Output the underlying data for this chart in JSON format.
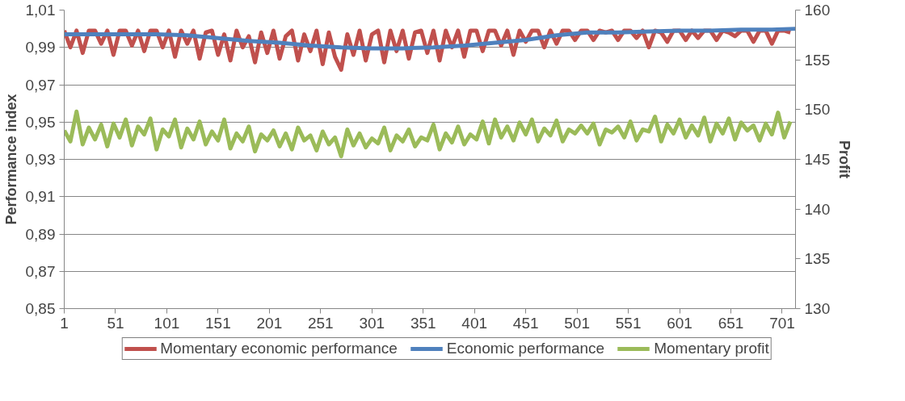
{
  "chart_data": {
    "type": "line",
    "ylabel": "Performance index",
    "y2label": "Profit",
    "xlim": [
      1,
      714
    ],
    "xticks": [
      1,
      51,
      101,
      151,
      201,
      251,
      301,
      351,
      401,
      451,
      501,
      551,
      601,
      651,
      701
    ],
    "ylim": [
      0.85,
      1.01
    ],
    "yticks": [
      {
        "value": 0.85,
        "label": "0,85"
      },
      {
        "value": 0.87,
        "label": "0,87"
      },
      {
        "value": 0.89,
        "label": "0,89"
      },
      {
        "value": 0.91,
        "label": "0,91"
      },
      {
        "value": 0.93,
        "label": "0,93"
      },
      {
        "value": 0.95,
        "label": "0,95"
      },
      {
        "value": 0.97,
        "label": "0,97"
      },
      {
        "value": 0.99,
        "label": "0,99"
      },
      {
        "value": 1.01,
        "label": "1,01"
      }
    ],
    "y2lim": [
      130,
      160
    ],
    "y2ticks": [
      130,
      135,
      140,
      145,
      150,
      155,
      160
    ],
    "grid": "y",
    "legend": "bottom",
    "line_style": "solid",
    "marker": "none",
    "series": [
      {
        "name": "Momentary economic performance",
        "color": "#c0504d",
        "x": [
          1,
          7,
          13,
          19,
          25,
          31,
          37,
          43,
          49,
          55,
          61,
          67,
          73,
          79,
          85,
          91,
          97,
          103,
          109,
          115,
          121,
          127,
          133,
          139,
          145,
          151,
          157,
          163,
          169,
          175,
          181,
          187,
          193,
          199,
          205,
          211,
          217,
          223,
          229,
          235,
          241,
          247,
          253,
          259,
          265,
          271,
          277,
          283,
          289,
          295,
          301,
          307,
          313,
          319,
          325,
          331,
          337,
          343,
          349,
          355,
          361,
          367,
          373,
          379,
          385,
          391,
          397,
          403,
          409,
          415,
          421,
          427,
          433,
          439,
          445,
          451,
          457,
          463,
          469,
          475,
          481,
          487,
          493,
          499,
          505,
          511,
          517,
          523,
          529,
          535,
          541,
          547,
          553,
          559,
          565,
          571,
          577,
          583,
          589,
          595,
          601,
          607,
          613,
          619,
          625,
          631,
          637,
          643,
          649,
          655,
          661,
          667,
          673,
          679,
          685,
          691,
          697,
          703,
          709
        ],
        "values": [
          0.999,
          0.99,
          0.999,
          0.987,
          0.999,
          0.999,
          0.992,
          0.999,
          0.986,
          0.999,
          0.999,
          0.991,
          0.999,
          0.988,
          0.999,
          0.999,
          0.99,
          0.999,
          0.985,
          0.999,
          0.992,
          0.999,
          0.984,
          0.998,
          0.999,
          0.986,
          0.997,
          0.983,
          0.999,
          0.99,
          0.996,
          0.982,
          0.998,
          0.987,
          0.999,
          0.984,
          0.996,
          0.999,
          0.983,
          0.997,
          0.988,
          0.999,
          0.981,
          0.998,
          0.985,
          0.978,
          0.997,
          0.986,
          0.999,
          0.983,
          0.997,
          0.999,
          0.982,
          0.999,
          0.988,
          0.999,
          0.984,
          0.998,
          0.999,
          0.987,
          0.999,
          0.983,
          0.999,
          0.99,
          0.999,
          0.985,
          0.999,
          0.999,
          0.988,
          0.999,
          0.999,
          0.991,
          0.999,
          0.986,
          0.999,
          0.993,
          0.999,
          0.999,
          0.99,
          0.999,
          0.992,
          0.999,
          0.999,
          0.994,
          0.999,
          0.999,
          0.994,
          0.999,
          0.998,
          0.999,
          0.994,
          0.999,
          0.999,
          0.995,
          0.999,
          0.99,
          0.999,
          0.998,
          0.993,
          0.999,
          0.999,
          0.994,
          0.999,
          0.995,
          0.999,
          0.999,
          0.994,
          0.999,
          0.998,
          0.996,
          0.999,
          0.999,
          0.993,
          0.999,
          0.999,
          0.992,
          0.999,
          0.999,
          0.998
        ]
      },
      {
        "name": "Economic performance",
        "color": "#4f81bd",
        "x": [
          1,
          31,
          61,
          91,
          121,
          151,
          181,
          211,
          241,
          271,
          301,
          331,
          361,
          391,
          421,
          451,
          481,
          511,
          541,
          571,
          601,
          631,
          661,
          691,
          714
        ],
        "values": [
          0.997,
          0.997,
          0.997,
          0.997,
          0.9965,
          0.995,
          0.9935,
          0.9925,
          0.991,
          0.99,
          0.9895,
          0.9895,
          0.99,
          0.991,
          0.9925,
          0.994,
          0.9965,
          0.998,
          0.998,
          0.9985,
          0.999,
          0.999,
          0.9995,
          0.9995,
          1.0
        ]
      },
      {
        "name": "Momentary profit",
        "color": "#9bbb59",
        "axis": "y2",
        "x": [
          1,
          7,
          13,
          19,
          25,
          31,
          37,
          43,
          49,
          55,
          61,
          67,
          73,
          79,
          85,
          91,
          97,
          103,
          109,
          115,
          121,
          127,
          133,
          139,
          145,
          151,
          157,
          163,
          169,
          175,
          181,
          187,
          193,
          199,
          205,
          211,
          217,
          223,
          229,
          235,
          241,
          247,
          253,
          259,
          265,
          271,
          277,
          283,
          289,
          295,
          301,
          307,
          313,
          319,
          325,
          331,
          337,
          343,
          349,
          355,
          361,
          367,
          373,
          379,
          385,
          391,
          397,
          403,
          409,
          415,
          421,
          427,
          433,
          439,
          445,
          451,
          457,
          463,
          469,
          475,
          481,
          487,
          493,
          499,
          505,
          511,
          517,
          523,
          529,
          535,
          541,
          547,
          553,
          559,
          565,
          571,
          577,
          583,
          589,
          595,
          601,
          607,
          613,
          619,
          625,
          631,
          637,
          643,
          649,
          655,
          661,
          667,
          673,
          679,
          685,
          691,
          697,
          703,
          709
        ],
        "values": [
          147.9,
          146.8,
          149.8,
          146.5,
          148.2,
          147.0,
          148.5,
          146.3,
          148.6,
          147.2,
          149.0,
          146.4,
          148.3,
          147.5,
          149.1,
          146.0,
          148.0,
          147.3,
          149.0,
          146.2,
          148.1,
          147.0,
          148.8,
          146.5,
          147.8,
          146.9,
          149.0,
          146.1,
          147.6,
          146.8,
          148.3,
          145.8,
          147.5,
          146.9,
          147.9,
          146.3,
          147.6,
          146.0,
          148.2,
          146.9,
          147.4,
          145.9,
          147.8,
          146.5,
          147.2,
          145.3,
          148.0,
          146.4,
          147.6,
          146.2,
          147.1,
          146.6,
          148.2,
          145.9,
          147.4,
          146.8,
          148.0,
          146.3,
          147.2,
          146.9,
          148.5,
          146.0,
          147.6,
          146.7,
          148.3,
          146.5,
          147.5,
          147.0,
          148.8,
          146.6,
          149.0,
          147.2,
          148.3,
          146.9,
          148.7,
          147.5,
          149.0,
          146.8,
          148.1,
          147.4,
          148.9,
          146.8,
          148.0,
          147.6,
          148.4,
          147.6,
          148.6,
          146.5,
          148.0,
          147.7,
          148.3,
          147.2,
          148.8,
          146.9,
          148.0,
          147.8,
          149.3,
          146.8,
          148.5,
          147.6,
          149.0,
          147.2,
          148.4,
          147.4,
          149.2,
          146.8,
          148.6,
          147.6,
          149.1,
          147.0,
          148.7,
          147.9,
          148.4,
          146.9,
          148.6,
          147.5,
          149.7,
          147.2,
          148.8
        ]
      }
    ]
  }
}
